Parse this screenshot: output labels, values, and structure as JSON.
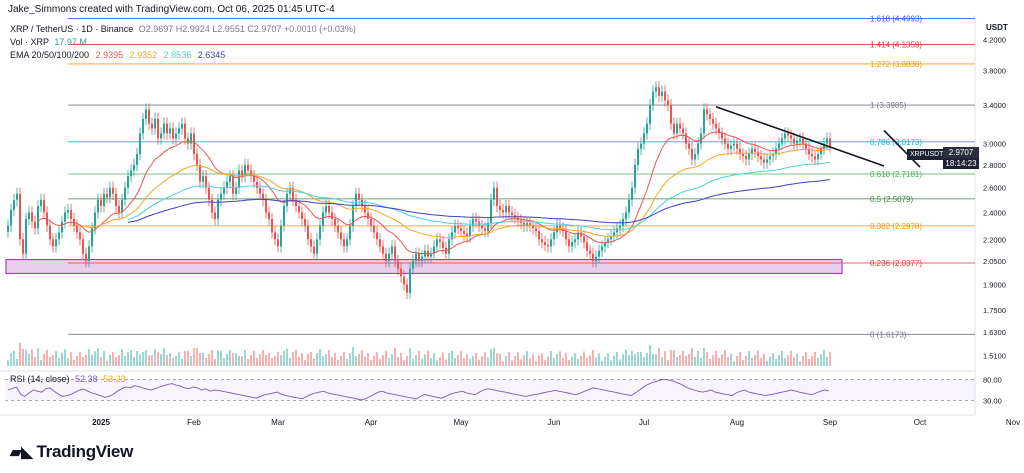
{
  "header": {
    "caption": "Jake_Simmons created with TradingView.com, Oct 06, 2025 01:45 UTC-4",
    "symbol_line": "XRP / TetherUS · 1D · Binance",
    "ohlc": "O2.9697  H2.9924  L2.9551  C2.9707  +0.0010 (+0.03%)",
    "vol_label": "Vol · XRP",
    "vol_value": "17.97 M",
    "ema_label": "EMA 20/50/100/200",
    "ema_values": [
      "2.9395",
      "2.9352",
      "2.8536",
      "2.6345"
    ]
  },
  "axis": {
    "currency": "USDT",
    "price_ticks": [
      "4.2000",
      "3.8000",
      "3.4000",
      "3.0000",
      "2.8000",
      "2.6000",
      "2.4000",
      "2.2000",
      "2.0500",
      "1.9000",
      "1.7500",
      "1.6300",
      "1.5100"
    ],
    "rsi_ticks": [
      "80.00",
      "30.00"
    ],
    "months": [
      "2025",
      "Feb",
      "Mar",
      "Apr",
      "May",
      "Jun",
      "Jul",
      "Aug",
      "Sep",
      "Oct",
      "Nov"
    ]
  },
  "price_tag": {
    "pair": "XRPUSDT",
    "last": "2.9707",
    "countdown": "18:14:23"
  },
  "rsi": {
    "label": "RSI (14, close)",
    "value": "52.38",
    "value2": "53.23"
  },
  "logo": {
    "text": "TradingView"
  },
  "colors": {
    "up": "#26a69a",
    "down": "#ef5350",
    "ema20": "#ef5350",
    "ema50": "#f5a623",
    "ema100": "#4dd0e1",
    "ema200": "#3f3fc9",
    "rsi": "#7e57c2",
    "zone": "#e1bee7"
  },
  "chart_data": {
    "type": "candlestick",
    "title": "XRP / TetherUS · 1D · Binance",
    "ylim": [
      1.45,
      4.55
    ],
    "y_scale": "log",
    "fib_levels": [
      {
        "label": "1.618 (4.4993)",
        "value": 4.4993,
        "color": "#2962ff"
      },
      {
        "label": "1.414 (4.1359)",
        "value": 4.1359,
        "color": "#e53935"
      },
      {
        "label": "1.272 (3.8830)",
        "value": 3.883,
        "color": "#ff9800"
      },
      {
        "label": "1 (3.3985)",
        "value": 3.3985,
        "color": "#787b86"
      },
      {
        "label": "0.786 (3.0173)",
        "value": 3.0173,
        "color": "#00bcd4"
      },
      {
        "label": "0.618 (2.7181)",
        "value": 2.7181,
        "color": "#4caf50"
      },
      {
        "label": "0.5 (2.5079)",
        "value": 2.5079,
        "color": "#388e3c"
      },
      {
        "label": "0.382 (2.2978)",
        "value": 2.2978,
        "color": "#ff9800"
      },
      {
        "label": "0.236 (2.0377)",
        "value": 2.0377,
        "color": "#e53935"
      },
      {
        "label": "0 (1.6173)",
        "value": 1.6173,
        "color": "#787b86"
      }
    ],
    "support_zone": [
      1.97,
      2.06
    ],
    "trendlines": [
      {
        "from": [
          "2025-07-25",
          3.38
        ],
        "to": [
          "2025-09-19",
          2.79
        ]
      },
      {
        "from": [
          "2025-09-19",
          3.13
        ],
        "to": [
          "2025-10-01",
          2.78
        ]
      }
    ],
    "start_date": "2024-12-01",
    "closes": [
      2.3,
      2.42,
      2.5,
      2.55,
      2.2,
      2.1,
      2.35,
      2.4,
      2.33,
      2.28,
      2.45,
      2.5,
      2.4,
      2.3,
      2.2,
      2.15,
      2.2,
      2.25,
      2.33,
      2.4,
      2.42,
      2.35,
      2.3,
      2.25,
      2.2,
      2.1,
      2.05,
      2.15,
      2.28,
      2.4,
      2.5,
      2.45,
      2.55,
      2.52,
      2.6,
      2.55,
      2.45,
      2.4,
      2.5,
      2.6,
      2.7,
      2.75,
      2.8,
      2.9,
      3.1,
      3.25,
      3.35,
      3.2,
      3.15,
      3.25,
      3.05,
      3.1,
      3.2,
      3.1,
      3.15,
      3.05,
      3.1,
      3.15,
      3.2,
      3.05,
      3.0,
      3.1,
      2.9,
      2.8,
      2.65,
      2.7,
      2.6,
      2.5,
      2.4,
      2.35,
      2.5,
      2.55,
      2.6,
      2.65,
      2.7,
      2.55,
      2.6,
      2.75,
      2.7,
      2.8,
      2.75,
      2.7,
      2.65,
      2.6,
      2.55,
      2.5,
      2.4,
      2.35,
      2.25,
      2.2,
      2.15,
      2.3,
      2.45,
      2.55,
      2.6,
      2.5,
      2.45,
      2.4,
      2.35,
      2.3,
      2.2,
      2.15,
      2.1,
      2.2,
      2.3,
      2.4,
      2.45,
      2.4,
      2.35,
      2.3,
      2.25,
      2.2,
      2.15,
      2.2,
      2.3,
      2.45,
      2.55,
      2.5,
      2.45,
      2.4,
      2.35,
      2.3,
      2.25,
      2.2,
      2.15,
      2.1,
      2.05,
      2.1,
      2.15,
      2.05,
      2.0,
      1.95,
      1.9,
      1.85,
      2.0,
      2.05,
      2.1,
      2.05,
      2.08,
      2.12,
      2.08,
      2.1,
      2.15,
      2.2,
      2.18,
      2.14,
      2.1,
      2.2,
      2.25,
      2.3,
      2.28,
      2.26,
      2.24,
      2.22,
      2.3,
      2.35,
      2.33,
      2.3,
      2.28,
      2.26,
      2.32,
      2.5,
      2.6,
      2.45,
      2.42,
      2.4,
      2.45,
      2.4,
      2.38,
      2.36,
      2.34,
      2.32,
      2.3,
      2.32,
      2.3,
      2.28,
      2.26,
      2.2,
      2.18,
      2.16,
      2.15,
      2.2,
      2.25,
      2.3,
      2.28,
      2.26,
      2.2,
      2.15,
      2.18,
      2.2,
      2.25,
      2.22,
      2.18,
      2.12,
      2.1,
      2.05,
      2.08,
      2.12,
      2.15,
      2.18,
      2.2,
      2.22,
      2.25,
      2.28,
      2.3,
      2.35,
      2.4,
      2.5,
      2.6,
      2.8,
      2.95,
      3.0,
      3.1,
      3.2,
      3.4,
      3.55,
      3.6,
      3.5,
      3.55,
      3.45,
      3.4,
      3.2,
      3.1,
      3.2,
      3.15,
      3.1,
      3.0,
      2.95,
      2.85,
      2.9,
      3.0,
      3.1,
      3.35,
      3.3,
      3.25,
      3.2,
      3.15,
      3.1,
      3.05,
      3.0,
      2.95,
      2.98,
      3.0,
      2.95,
      2.9,
      2.88,
      2.85,
      2.9,
      2.95,
      2.92,
      2.88,
      2.85,
      2.82,
      2.85,
      2.88,
      2.9,
      2.95,
      3.0,
      3.05,
      3.1,
      3.08,
      3.05,
      3.0,
      3.03,
      3.05,
      3.0,
      2.95,
      2.9,
      2.88,
      2.85,
      2.9,
      2.95,
      3.0,
      3.05,
      2.97
    ],
    "rsi": [
      55,
      58,
      62,
      45,
      40,
      48,
      55,
      52,
      50,
      58,
      60,
      52,
      45,
      40,
      42,
      45,
      50,
      55,
      57,
      52,
      48,
      45,
      42,
      38,
      40,
      45,
      52,
      58,
      62,
      60,
      65,
      63,
      60,
      57,
      55,
      58,
      62,
      65,
      68,
      70,
      66,
      64,
      60,
      58,
      62,
      60,
      55,
      58,
      52,
      55,
      54,
      52,
      50,
      48,
      46,
      44,
      42,
      40,
      38,
      36,
      40,
      44,
      46,
      48,
      50,
      45,
      42,
      40,
      38,
      36,
      35,
      40,
      45,
      48,
      50,
      52,
      48,
      46,
      44,
      42,
      40,
      38,
      36,
      34,
      32,
      35,
      40,
      45,
      50,
      52,
      48,
      46,
      44,
      42,
      40,
      38,
      36,
      34,
      40,
      45,
      42,
      40,
      38,
      36,
      40,
      45,
      48,
      50,
      52,
      48,
      46,
      44,
      50,
      55,
      58,
      56,
      54,
      52,
      50,
      48,
      46,
      44,
      42,
      40,
      42,
      44,
      46,
      48,
      50,
      52,
      54,
      52,
      50,
      48,
      46,
      44,
      48,
      52,
      56,
      60,
      58,
      56,
      54,
      52,
      50,
      48,
      46,
      44,
      42,
      48,
      55,
      62,
      68,
      72,
      75,
      78,
      80,
      78,
      76,
      72,
      68,
      62,
      58,
      55,
      52,
      50,
      52,
      55,
      50,
      48,
      46,
      44,
      42,
      48,
      52,
      55,
      50,
      48,
      46,
      44,
      42,
      44,
      46,
      48,
      50,
      52,
      55,
      53,
      50,
      48,
      46,
      44,
      48,
      52,
      55,
      53
    ]
  }
}
